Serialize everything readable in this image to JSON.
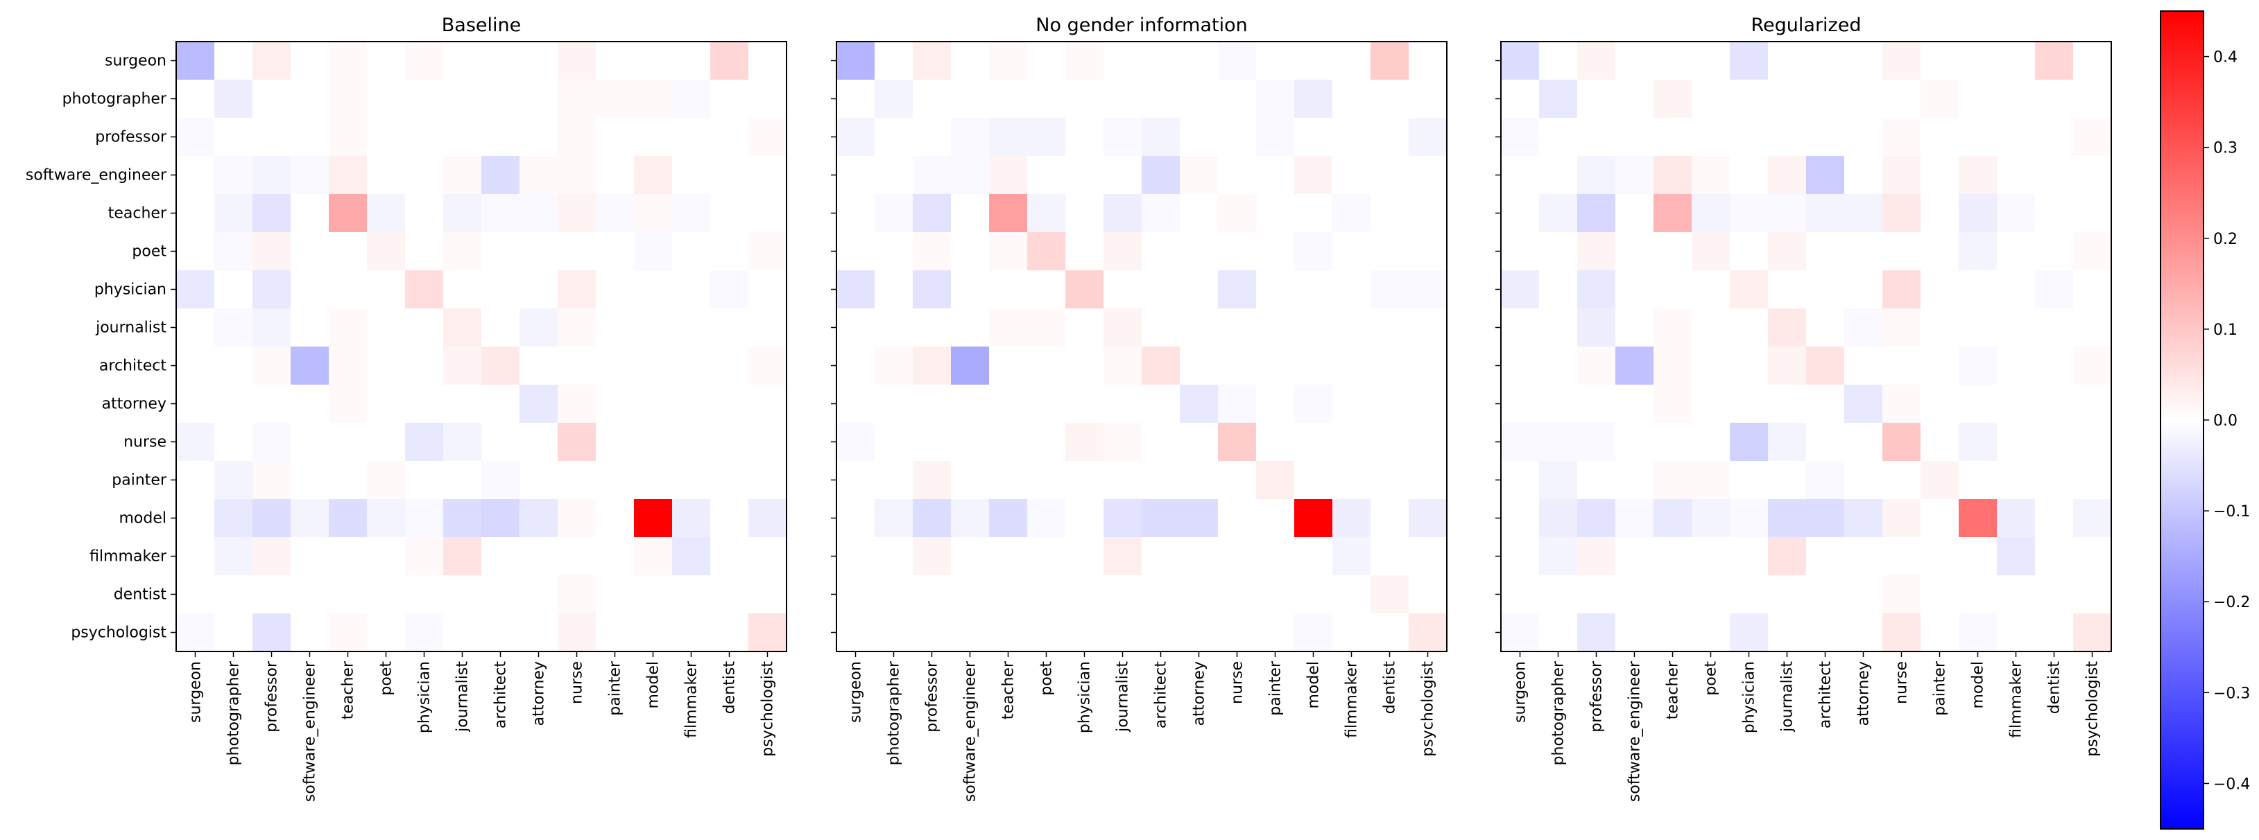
{
  "chart_data": {
    "type": "heatmap",
    "colormap": "bwr",
    "vmin": -0.45,
    "vmax": 0.45,
    "labels": [
      "surgeon",
      "photographer",
      "professor",
      "software_engineer",
      "teacher",
      "poet",
      "physician",
      "journalist",
      "architect",
      "attorney",
      "nurse",
      "painter",
      "model",
      "filmmaker",
      "dentist",
      "psychologist"
    ],
    "colorbar": {
      "ticks": [
        0.4,
        0.3,
        0.2,
        0.1,
        0.0,
        -0.1,
        -0.2,
        -0.3,
        -0.4
      ],
      "tick_labels": [
        "0.4",
        "0.3",
        "0.2",
        "0.1",
        "0.0",
        "−0.1",
        "−0.2",
        "−0.3",
        "−0.4"
      ]
    },
    "panels": [
      {
        "title": "Baseline",
        "matrix": [
          [
            -0.12,
            0,
            0.03,
            0,
            0.01,
            0,
            0.01,
            0,
            0,
            0,
            0.02,
            0,
            0,
            0,
            0.07,
            0
          ],
          [
            0,
            -0.03,
            0,
            0,
            0.01,
            0,
            0,
            0,
            0,
            0,
            0.01,
            0.01,
            0.01,
            -0.01,
            0,
            0
          ],
          [
            -0.01,
            0,
            0,
            0,
            0.01,
            0,
            0,
            0,
            0,
            0,
            0.01,
            0,
            0,
            0,
            0,
            0.01
          ],
          [
            0,
            -0.01,
            -0.02,
            -0.01,
            0.03,
            0,
            0,
            0.01,
            -0.06,
            0.01,
            0.01,
            0,
            0.03,
            0,
            0,
            0
          ],
          [
            0,
            -0.02,
            -0.05,
            0,
            0.15,
            -0.02,
            0,
            -0.02,
            -0.01,
            -0.01,
            0.02,
            -0.01,
            0.01,
            -0.01,
            0,
            0
          ],
          [
            0,
            -0.01,
            0.02,
            0,
            0,
            0.02,
            0,
            0.01,
            0,
            0,
            0,
            0,
            -0.01,
            0,
            0,
            0.01
          ],
          [
            -0.04,
            0,
            -0.04,
            0,
            0,
            0,
            0.06,
            0,
            0,
            0,
            0.03,
            0,
            0,
            0,
            -0.01,
            0
          ],
          [
            0,
            -0.01,
            -0.02,
            0,
            0.01,
            0,
            0,
            0.03,
            0,
            -0.02,
            0.01,
            0,
            0,
            0,
            0,
            0
          ],
          [
            0,
            0,
            0.01,
            -0.12,
            0.01,
            0,
            0,
            0.02,
            0.04,
            0,
            0,
            0,
            0,
            0,
            0,
            0.01
          ],
          [
            0,
            0,
            0,
            0,
            0.01,
            0,
            0,
            0,
            0,
            -0.04,
            0.01,
            0,
            0,
            0,
            0,
            0
          ],
          [
            -0.02,
            0,
            -0.01,
            0,
            0,
            0,
            -0.04,
            -0.02,
            0,
            0,
            0.07,
            0,
            0,
            0,
            0,
            0
          ],
          [
            0,
            -0.02,
            0.01,
            0,
            0,
            0.01,
            0,
            0,
            -0.01,
            0,
            0,
            0,
            0,
            0,
            0,
            0
          ],
          [
            0,
            -0.04,
            -0.06,
            -0.02,
            -0.06,
            -0.02,
            -0.01,
            -0.06,
            -0.07,
            -0.04,
            0.01,
            0,
            0.45,
            -0.03,
            0,
            -0.03
          ],
          [
            0,
            -0.02,
            0.02,
            0,
            0,
            0,
            0.01,
            0.05,
            0,
            0,
            0,
            0,
            0.01,
            -0.04,
            0,
            0
          ],
          [
            0,
            0,
            0,
            0,
            0,
            0,
            0,
            0,
            0,
            0,
            0.01,
            0,
            0,
            0,
            0,
            0
          ],
          [
            -0.01,
            0,
            -0.05,
            0,
            0.01,
            0,
            -0.01,
            0,
            0,
            0,
            0.02,
            0,
            0,
            0,
            0,
            0.05
          ]
        ]
      },
      {
        "title": "No gender information",
        "matrix": [
          [
            -0.13,
            0,
            0.03,
            0,
            0.01,
            0,
            0.01,
            0,
            0,
            0,
            -0.01,
            0,
            0,
            0,
            0.09,
            0
          ],
          [
            0,
            -0.02,
            0,
            0,
            0,
            0,
            0,
            0,
            0,
            0,
            0,
            -0.01,
            -0.03,
            0,
            0,
            0
          ],
          [
            -0.02,
            0,
            0,
            -0.01,
            -0.02,
            -0.02,
            0,
            -0.01,
            -0.02,
            0,
            0,
            -0.01,
            0,
            0,
            0,
            -0.02
          ],
          [
            0,
            0,
            -0.01,
            -0.01,
            0.02,
            0,
            0,
            0,
            -0.06,
            0.01,
            0,
            0,
            0.02,
            0,
            0,
            0
          ],
          [
            0,
            -0.01,
            -0.05,
            0,
            0.17,
            -0.02,
            0,
            -0.03,
            -0.01,
            0,
            0.01,
            0,
            0,
            -0.01,
            0,
            0
          ],
          [
            0,
            0,
            0.01,
            0,
            0.01,
            0.07,
            0,
            0.02,
            0,
            0,
            0,
            0,
            -0.01,
            0,
            0,
            0
          ],
          [
            -0.05,
            0,
            -0.05,
            0,
            0,
            0,
            0.08,
            0,
            0,
            0,
            -0.04,
            0,
            0,
            0,
            -0.01,
            -0.01
          ],
          [
            0,
            0,
            0,
            0,
            0.01,
            0.01,
            0,
            0.02,
            0,
            0,
            0,
            0,
            0,
            0,
            0,
            0
          ],
          [
            0,
            0.01,
            0.03,
            -0.15,
            0,
            0,
            0,
            0.01,
            0.05,
            0,
            0,
            0,
            0,
            0,
            0,
            0
          ],
          [
            0,
            0,
            0,
            0,
            0,
            0,
            0,
            0,
            0,
            -0.04,
            -0.01,
            0,
            -0.01,
            0,
            0,
            0
          ],
          [
            -0.01,
            0,
            0,
            0,
            0,
            0,
            0.02,
            0.01,
            0,
            0,
            0.09,
            0,
            0,
            0,
            0,
            0
          ],
          [
            0,
            0,
            0.02,
            0,
            0,
            0,
            0,
            0,
            0,
            0,
            0,
            0.03,
            0,
            0,
            0,
            0
          ],
          [
            0,
            -0.02,
            -0.06,
            -0.02,
            -0.06,
            -0.01,
            0,
            -0.05,
            -0.06,
            -0.06,
            0,
            0,
            0.45,
            -0.03,
            0,
            -0.03
          ],
          [
            0,
            0,
            0.02,
            0,
            0,
            0,
            0,
            0.03,
            0,
            0,
            0,
            0,
            0,
            -0.02,
            0,
            0
          ],
          [
            0,
            0,
            0,
            0,
            0,
            0,
            0,
            0,
            0,
            0,
            0,
            0,
            0,
            0,
            0.02,
            0
          ],
          [
            0,
            0,
            0,
            0,
            0,
            0,
            0,
            0,
            0,
            0,
            0,
            0,
            -0.01,
            0,
            0,
            0.04
          ]
        ]
      },
      {
        "title": "Regularized",
        "matrix": [
          [
            -0.06,
            0,
            0.02,
            0,
            0,
            0,
            -0.05,
            0,
            0,
            0,
            0.02,
            0,
            0,
            0,
            0.07,
            0
          ],
          [
            0,
            -0.04,
            0,
            0,
            0.02,
            0,
            0,
            0,
            0,
            0,
            0,
            0.01,
            0,
            0,
            0,
            0
          ],
          [
            -0.01,
            0,
            0,
            0,
            0,
            0,
            0,
            0,
            0,
            0,
            0.01,
            0,
            0,
            0,
            0,
            0.01
          ],
          [
            0,
            0,
            -0.02,
            -0.01,
            0.04,
            0.01,
            0,
            0.02,
            -0.09,
            0,
            0.02,
            0,
            0.02,
            0,
            0,
            0
          ],
          [
            0,
            -0.02,
            -0.07,
            0,
            0.13,
            -0.02,
            -0.01,
            -0.01,
            -0.02,
            -0.02,
            0.04,
            0,
            -0.03,
            -0.01,
            0,
            0
          ],
          [
            0,
            0,
            0.02,
            0,
            0,
            0.02,
            0,
            0.02,
            0,
            0,
            0,
            0,
            -0.02,
            0,
            0,
            0.01
          ],
          [
            -0.03,
            0,
            -0.04,
            0,
            0,
            0,
            0.03,
            0,
            0,
            0,
            0.06,
            0,
            0,
            0,
            -0.01,
            0
          ],
          [
            0,
            0,
            -0.03,
            0,
            0.01,
            0,
            0,
            0.04,
            0,
            -0.01,
            0.01,
            0,
            0,
            0,
            0,
            0
          ],
          [
            0,
            0,
            0.01,
            -0.11,
            0.01,
            0,
            0,
            0.02,
            0.05,
            0,
            0,
            0,
            -0.01,
            0,
            0,
            0.01
          ],
          [
            0,
            0,
            0,
            0,
            0.01,
            0,
            0,
            0,
            0,
            -0.04,
            0.01,
            0,
            0,
            0,
            0,
            0
          ],
          [
            -0.01,
            -0.01,
            -0.01,
            0,
            0,
            0,
            -0.08,
            -0.02,
            0,
            0,
            0.1,
            0,
            -0.02,
            0,
            0,
            0
          ],
          [
            0,
            -0.02,
            0,
            0,
            0.01,
            0.01,
            0,
            0,
            -0.01,
            0,
            0,
            0.02,
            0,
            0,
            0,
            0
          ],
          [
            0,
            -0.03,
            -0.05,
            -0.01,
            -0.04,
            -0.02,
            -0.01,
            -0.06,
            -0.06,
            -0.04,
            0.02,
            0,
            0.25,
            -0.03,
            0,
            -0.02
          ],
          [
            0,
            -0.02,
            0.02,
            0,
            0,
            0,
            0,
            0.05,
            0,
            0,
            0,
            0,
            0,
            -0.04,
            0,
            0
          ],
          [
            0,
            0,
            0,
            0,
            0,
            0,
            0,
            0,
            0,
            0,
            0.01,
            0,
            0,
            0,
            0,
            0
          ],
          [
            -0.01,
            0,
            -0.04,
            0,
            0,
            0,
            -0.03,
            0,
            0,
            0,
            0.04,
            0,
            -0.01,
            0,
            0,
            0.04
          ]
        ]
      }
    ]
  }
}
